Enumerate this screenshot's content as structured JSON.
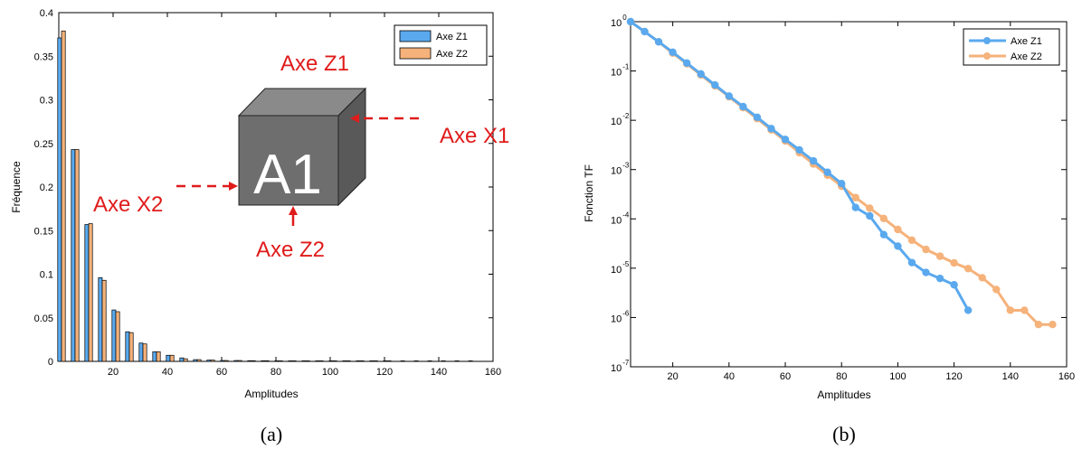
{
  "colors": {
    "z1": "#5aa9ee",
    "z2": "#f5b27a",
    "annotation": "#e01b1b"
  },
  "chart_data": [
    {
      "type": "bar",
      "xlabel": "Amplitudes",
      "ylabel": "Fréquence",
      "xlim": [
        0,
        160
      ],
      "ylim": [
        0,
        0.4
      ],
      "xticks": [
        "20",
        "40",
        "60",
        "80",
        "100",
        "120",
        "140",
        "160"
      ],
      "yticks": [
        "0",
        "0.05",
        "0.1",
        "0.15",
        "0.2",
        "0.25",
        "0.3",
        "0.35",
        "0.4"
      ],
      "x": [
        5,
        10,
        15,
        20,
        25,
        30,
        35,
        40,
        45,
        50,
        55,
        60,
        65,
        70,
        75,
        80,
        85,
        90,
        95,
        100,
        105,
        110,
        115,
        120,
        125,
        130,
        135,
        140,
        145,
        150,
        155
      ],
      "series": [
        {
          "name": "Axe Z1",
          "values": [
            0.371,
            0.243,
            0.157,
            0.096,
            0.059,
            0.034,
            0.021,
            0.011,
            0.007,
            0.004,
            0.002,
            0.0015,
            0.001,
            0.001,
            0.0008,
            0.0007,
            0.0006,
            0.0005,
            0.0004,
            0.0004,
            0.0003,
            0.0003,
            0.0002,
            0.0002,
            0.0002,
            0,
            0,
            0,
            0,
            0,
            0
          ]
        },
        {
          "name": "Axe Z2",
          "values": [
            0.379,
            0.243,
            0.158,
            0.093,
            0.057,
            0.033,
            0.02,
            0.011,
            0.007,
            0.003,
            0.002,
            0.0015,
            0.001,
            0.001,
            0.0008,
            0.0007,
            0.0006,
            0.0005,
            0.0004,
            0.0004,
            0.0003,
            0.0003,
            0.0003,
            0.0002,
            0.0002,
            0.0002,
            0.0002,
            0.0002,
            0.0001,
            0.0001,
            0.0001
          ]
        }
      ],
      "legend": "top-right",
      "annotations": {
        "cube_label": "A1",
        "axe_z1": "Axe Z1",
        "axe_z2": "Axe Z2",
        "axe_x1": "Axe X1",
        "axe_x2": "Axe X2"
      },
      "caption": "(a)"
    },
    {
      "type": "line",
      "scale_y": "log",
      "xlabel": "Amplitudes",
      "ylabel": "Fonction TF",
      "xlim": [
        5,
        160
      ],
      "ylim": [
        1e-07,
        1
      ],
      "xticks": [
        "20",
        "40",
        "60",
        "80",
        "100",
        "120",
        "140",
        "160"
      ],
      "yticks_exp": [
        "0",
        "-1",
        "-2",
        "-3",
        "-4",
        "-5",
        "-6",
        "-7"
      ],
      "series": [
        {
          "name": "Axe Z1",
          "x": [
            5,
            10,
            15,
            20,
            25,
            30,
            35,
            40,
            45,
            50,
            55,
            60,
            65,
            70,
            75,
            80,
            85,
            90,
            95,
            100,
            105,
            110,
            115,
            120,
            125
          ],
          "values": [
            1,
            0.63,
            0.39,
            0.24,
            0.145,
            0.087,
            0.052,
            0.031,
            0.019,
            0.0115,
            0.0068,
            0.0041,
            0.0025,
            0.0015,
            0.00088,
            0.00052,
            0.00017,
            0.000115,
            4.8e-05,
            2.8e-05,
            1.3e-05,
            8.2e-06,
            6.2e-06,
            4.6e-06,
            1.4e-06
          ]
        },
        {
          "name": "Axe Z2",
          "x": [
            5,
            10,
            15,
            20,
            25,
            30,
            35,
            40,
            45,
            50,
            55,
            60,
            65,
            70,
            75,
            80,
            85,
            90,
            95,
            100,
            105,
            110,
            115,
            120,
            125,
            130,
            135,
            140,
            145,
            150,
            155
          ],
          "values": [
            1,
            0.63,
            0.39,
            0.23,
            0.14,
            0.083,
            0.05,
            0.03,
            0.018,
            0.0108,
            0.0064,
            0.0038,
            0.0022,
            0.0013,
            0.00077,
            0.00046,
            0.00027,
            0.000165,
            0.000102,
            6.1e-05,
            3.7e-05,
            2.4e-05,
            1.75e-05,
            1.28e-05,
            9.8e-06,
            6.4e-06,
            3.7e-06,
            1.4e-06,
            1.4e-06,
            7.2e-07,
            7.2e-07
          ]
        }
      ],
      "legend": "top-right",
      "caption": "(b)"
    }
  ]
}
